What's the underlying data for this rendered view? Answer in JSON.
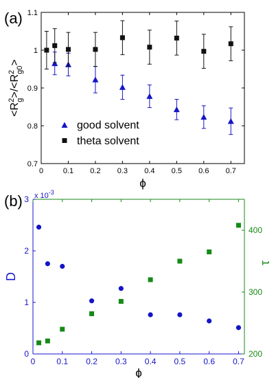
{
  "panels": [
    {
      "label": "(a)"
    },
    {
      "label": "(b)"
    }
  ],
  "chart_data": [
    {
      "type": "scatter",
      "panel": "(a)",
      "xlabel": "ϕ",
      "ylabel": "<R²g>/<R²g0>",
      "xlim": [
        0,
        0.75
      ],
      "ylim": [
        0.7,
        1.1
      ],
      "x_ticks": [
        "0",
        "0.1",
        "0.2",
        "0.3",
        "0.4",
        "0.5",
        "0.6",
        "0.7"
      ],
      "y_ticks": [
        "0.7",
        "0.8",
        "0.9",
        "1",
        "1.1"
      ],
      "legend_position": "bottom-left",
      "series": [
        {
          "name": "good solvent",
          "marker": "triangle",
          "color": "#1414c8",
          "points": [
            {
              "x": 0.05,
              "y": 0.965,
              "err": 0.03
            },
            {
              "x": 0.1,
              "y": 0.962,
              "err": 0.03
            },
            {
              "x": 0.2,
              "y": 0.922,
              "err": 0.035
            },
            {
              "x": 0.3,
              "y": 0.902,
              "err": 0.032
            },
            {
              "x": 0.4,
              "y": 0.878,
              "err": 0.03
            },
            {
              "x": 0.5,
              "y": 0.843,
              "err": 0.027
            },
            {
              "x": 0.6,
              "y": 0.823,
              "err": 0.03
            },
            {
              "x": 0.7,
              "y": 0.812,
              "err": 0.035
            }
          ]
        },
        {
          "name": "theta solvent",
          "marker": "square",
          "color": "#111111",
          "points": [
            {
              "x": 0.02,
              "y": 1.0,
              "err": 0.05
            },
            {
              "x": 0.05,
              "y": 1.012,
              "err": 0.045
            },
            {
              "x": 0.1,
              "y": 1.002,
              "err": 0.045
            },
            {
              "x": 0.2,
              "y": 1.002,
              "err": 0.045
            },
            {
              "x": 0.3,
              "y": 1.033,
              "err": 0.045
            },
            {
              "x": 0.4,
              "y": 1.008,
              "err": 0.045
            },
            {
              "x": 0.5,
              "y": 1.032,
              "err": 0.045
            },
            {
              "x": 0.6,
              "y": 0.997,
              "err": 0.045
            },
            {
              "x": 0.7,
              "y": 1.017,
              "err": 0.045
            }
          ]
        }
      ]
    },
    {
      "type": "scatter",
      "panel": "(b)",
      "xlabel": "ϕ",
      "xlim": [
        0,
        0.72
      ],
      "x_ticks": [
        "0",
        "0.1",
        "0.2",
        "0.3",
        "0.4",
        "0.5",
        "0.6",
        "0.7"
      ],
      "left_axis": {
        "label": "D",
        "color": "#1414c8",
        "ylim": [
          0,
          3
        ],
        "ticks": [
          "0",
          "1",
          "2",
          "3"
        ],
        "multiplier": "x 10",
        "exponent": "-3"
      },
      "right_axis": {
        "label": "τ",
        "color": "#168a16",
        "ylim": [
          200,
          450
        ],
        "ticks": [
          "200",
          "300",
          "400"
        ]
      },
      "series": [
        {
          "axis": "left",
          "marker": "circle",
          "color": "#1414c8",
          "points": [
            {
              "x": 0.02,
              "y": 2.46
            },
            {
              "x": 0.05,
              "y": 1.75
            },
            {
              "x": 0.1,
              "y": 1.7
            },
            {
              "x": 0.2,
              "y": 1.03
            },
            {
              "x": 0.3,
              "y": 1.27
            },
            {
              "x": 0.4,
              "y": 0.76
            },
            {
              "x": 0.5,
              "y": 0.76
            },
            {
              "x": 0.6,
              "y": 0.64
            },
            {
              "x": 0.7,
              "y": 0.51
            }
          ]
        },
        {
          "axis": "right",
          "marker": "square",
          "color": "#168a16",
          "points": [
            {
              "x": 0.02,
              "y": 218
            },
            {
              "x": 0.05,
              "y": 221
            },
            {
              "x": 0.1,
              "y": 240
            },
            {
              "x": 0.2,
              "y": 265
            },
            {
              "x": 0.3,
              "y": 285
            },
            {
              "x": 0.4,
              "y": 320
            },
            {
              "x": 0.5,
              "y": 350
            },
            {
              "x": 0.6,
              "y": 365
            },
            {
              "x": 0.7,
              "y": 408
            }
          ]
        }
      ]
    }
  ]
}
